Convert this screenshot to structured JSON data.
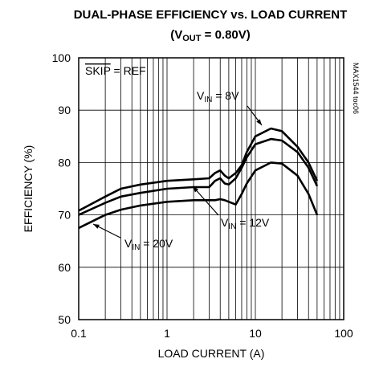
{
  "chart_data": {
    "type": "line",
    "title": "DUAL-PHASE EFFICIENCY  vs. LOAD CURRENT",
    "subtitle_parts": [
      "(V",
      "OUT",
      " = 0.80V)"
    ],
    "xlabel": "LOAD CURRENT (A)",
    "ylabel": "EFFICIENCY (%)",
    "note": "MAX1544 toc06",
    "annotation_parts": [
      "SKIP",
      " = REF"
    ],
    "x": [
      0.1,
      0.2,
      0.3,
      0.5,
      1,
      2,
      3,
      3.5,
      4,
      4.5,
      5,
      6,
      7,
      8,
      10,
      15,
      20,
      30,
      40,
      50
    ],
    "series": [
      {
        "name": [
          "V",
          "IN",
          " = 8V"
        ],
        "color": "#000000",
        "values": [
          70.8,
          73.5,
          75,
          75.8,
          76.5,
          76.8,
          77,
          78,
          78.5,
          77.5,
          77,
          78,
          79.5,
          82,
          85,
          86.5,
          86,
          83,
          80,
          76.5
        ]
      },
      {
        "name": [
          "V",
          "IN",
          " = 12V"
        ],
        "color": "#000000",
        "values": [
          70,
          72.3,
          73.5,
          74.2,
          75,
          75.3,
          75.3,
          76.5,
          77,
          76,
          75.8,
          77,
          79,
          81,
          83.5,
          84.5,
          84.2,
          82,
          79,
          75.5
        ]
      },
      {
        "name": [
          "V",
          "IN",
          " = 20V"
        ],
        "color": "#000000",
        "values": [
          67.5,
          70,
          71,
          71.8,
          72.5,
          72.8,
          72.8,
          72.8,
          73,
          72.8,
          72.5,
          72,
          74,
          76,
          78.5,
          80,
          79.8,
          77.5,
          74,
          70
        ]
      }
    ],
    "xlog": true,
    "xlim": [
      0.1,
      100
    ],
    "xticks": [
      0.1,
      1,
      10,
      100
    ],
    "xminorticks": [
      0.2,
      0.3,
      0.4,
      0.5,
      0.6,
      0.7,
      0.8,
      0.9,
      2,
      3,
      4,
      5,
      6,
      7,
      8,
      9,
      20,
      30,
      40,
      50,
      60,
      70,
      80,
      90
    ],
    "ylim": [
      50,
      100
    ],
    "yticks": [
      50,
      60,
      70,
      80,
      90,
      100
    ],
    "grid": true
  }
}
